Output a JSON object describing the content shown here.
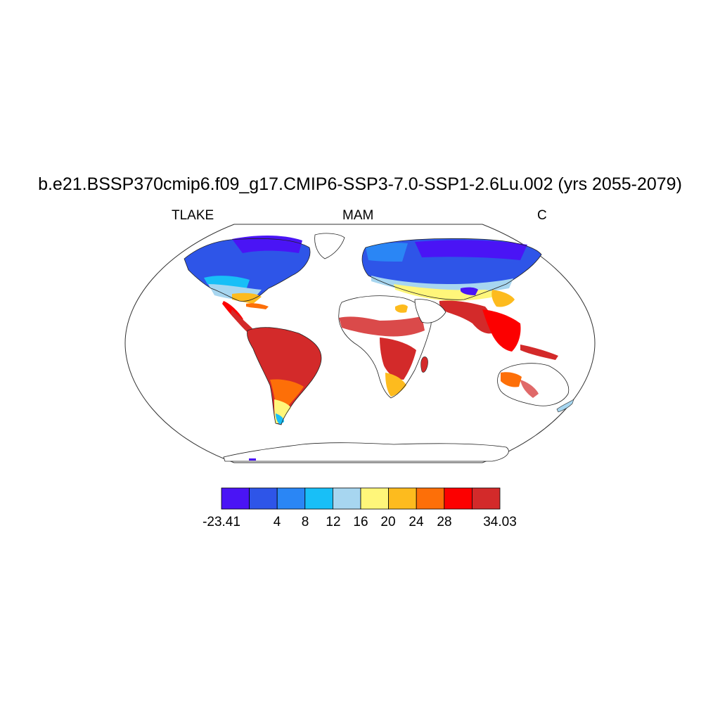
{
  "title": "b.e21.BSSP370cmip6.f09_g17.CMIP6-SSP3-7.0-SSP1-2.6Lu.002 (yrs 2055-2079)",
  "left_string": "TLAKE",
  "center_string": "MAM",
  "right_string": "C",
  "colorbar": {
    "colors": [
      "#4a14f5",
      "#2e55e8",
      "#2a86f5",
      "#18bff7",
      "#a7d6f0",
      "#fff67a",
      "#fdbb1e",
      "#fd6f08",
      "#fc0000",
      "#d32a2a"
    ],
    "labels": [
      "-23.41",
      "4",
      "8",
      "12",
      "16",
      "20",
      "24",
      "28",
      "34.03"
    ]
  }
}
